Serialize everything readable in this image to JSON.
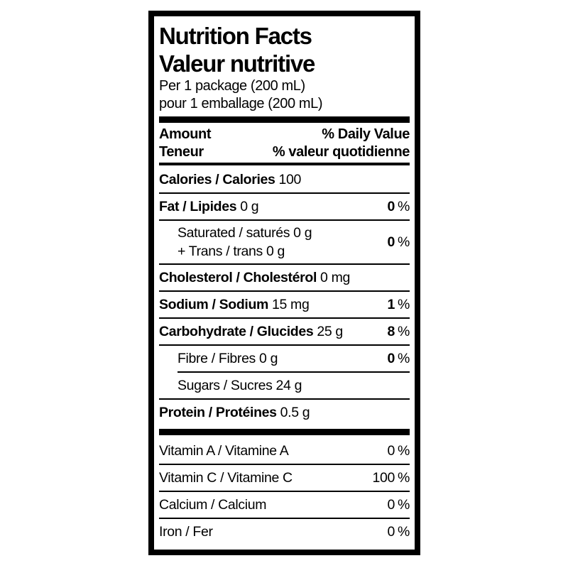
{
  "label": {
    "title_en": "Nutrition Facts",
    "title_fr": "Valeur nutritive",
    "serving_en": "Per 1 package (200 mL)",
    "serving_fr": "pour 1 emballage (200 mL)",
    "percent_sign": "%",
    "header": {
      "amount_en": "Amount",
      "amount_fr": "Teneur",
      "daily_value_en": "% Daily Value",
      "daily_value_fr": "% valeur quotidienne"
    },
    "rows": [
      {
        "name": "Calories / Calories",
        "value": "100"
      },
      {
        "name": "Fat / Lipides",
        "value": "0 g",
        "dv": "0"
      },
      {
        "lines": [
          "Saturated / saturés 0 g",
          "+ Trans / trans 0 g"
        ],
        "dv": "0"
      },
      {
        "name": "Cholesterol / Cholestérol",
        "value": "0 mg"
      },
      {
        "name": "Sodium / Sodium",
        "value": "15 mg",
        "dv": "1"
      },
      {
        "name": "Carbohydrate / Glucides",
        "value": "25 g",
        "dv": "8"
      },
      {
        "name": "Fibre / Fibres 0 g",
        "dv": "0"
      },
      {
        "name": "Sugars / Sucres 24 g"
      },
      {
        "name": "Protein / Protéines",
        "value": "0.5 g"
      }
    ],
    "micronutrients": [
      {
        "name": "Vitamin A / Vitamine A",
        "dv": "0"
      },
      {
        "name": "Vitamin C / Vitamine C",
        "dv": "100"
      },
      {
        "name": "Calcium / Calcium",
        "dv": "0"
      },
      {
        "name": "Iron / Fer",
        "dv": "0"
      }
    ],
    "colors": {
      "text": "#000000",
      "background": "#ffffff",
      "border": "#000000"
    }
  }
}
